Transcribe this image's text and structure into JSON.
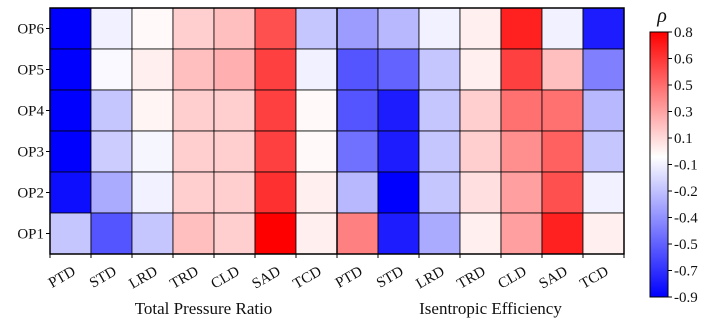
{
  "chart_data": {
    "type": "heatmap",
    "rows": [
      "OP6",
      "OP5",
      "OP4",
      "OP3",
      "OP2",
      "OP1"
    ],
    "panels": [
      {
        "title": "Total Pressure Ratio",
        "columns": [
          "PTD",
          "STD",
          "LRD",
          "TRD",
          "CLD",
          "SAD",
          "TCD"
        ],
        "values": [
          [
            -0.92,
            -0.05,
            0.02,
            0.15,
            0.2,
            0.55,
            -0.2
          ],
          [
            -0.92,
            -0.02,
            0.05,
            0.2,
            0.25,
            0.6,
            -0.05
          ],
          [
            -0.92,
            -0.2,
            0.03,
            0.15,
            0.15,
            0.6,
            0.02
          ],
          [
            -0.92,
            -0.18,
            -0.03,
            0.15,
            0.15,
            0.6,
            0.02
          ],
          [
            -0.85,
            -0.3,
            -0.05,
            0.15,
            0.15,
            0.65,
            0.05
          ],
          [
            -0.2,
            -0.6,
            -0.2,
            0.2,
            0.15,
            0.85,
            0.05
          ]
        ]
      },
      {
        "title": "Isentropic Efficiency",
        "columns": [
          "PTD",
          "STD",
          "LRD",
          "TRD",
          "CLD",
          "SAD",
          "TCD"
        ],
        "values": [
          [
            -0.35,
            -0.25,
            -0.05,
            0.05,
            0.7,
            -0.05,
            -0.8
          ],
          [
            -0.6,
            -0.55,
            -0.2,
            0.05,
            0.6,
            0.2,
            -0.45
          ],
          [
            -0.6,
            -0.8,
            -0.2,
            0.15,
            0.45,
            0.45,
            -0.25
          ],
          [
            -0.5,
            -0.8,
            -0.2,
            0.15,
            0.35,
            0.5,
            -0.2
          ],
          [
            -0.25,
            -0.9,
            -0.2,
            0.1,
            0.3,
            0.55,
            -0.05
          ],
          [
            0.4,
            -0.8,
            -0.3,
            0.05,
            0.3,
            0.7,
            0.05
          ]
        ]
      }
    ],
    "colorbar": {
      "title": "ρ",
      "range": [
        -0.9,
        0.8
      ],
      "colors": [
        "#0000ff",
        "#ffffff",
        "#ff0000"
      ],
      "tick_labels": [
        "0.8",
        "0.6",
        "0.5",
        "0.3",
        "0.1",
        "-0.1",
        "-0.2",
        "-0.4",
        "-0.5",
        "-0.7",
        "-0.9"
      ]
    }
  }
}
